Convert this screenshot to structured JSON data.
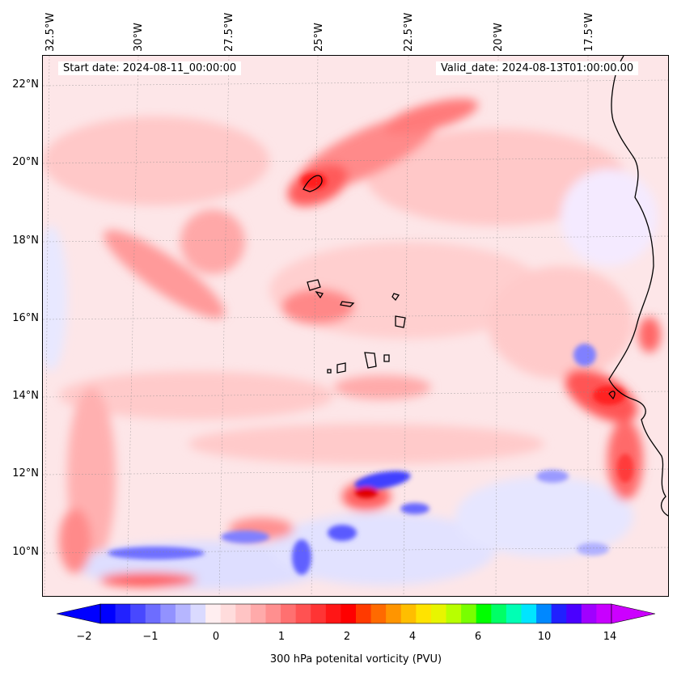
{
  "header": {
    "start_date": "Start date: 2024-08-11_00:00:00",
    "valid_date": "Valid_date: 2024-08-13T01:00:00.00"
  },
  "axes": {
    "lon_labels": [
      "32.5°W",
      "30°W",
      "27.5°W",
      "25°W",
      "22.5°W",
      "20°W",
      "17.5°W"
    ],
    "lat_labels": [
      "22°N",
      "20°N",
      "18°N",
      "16°N",
      "14°N",
      "12°N",
      "10°N"
    ]
  },
  "colorbar": {
    "label": "300 hPa potenital vorticity (PVU)",
    "ticks": [
      "−2",
      "−1",
      "0",
      "1",
      "2",
      "4",
      "6",
      "10",
      "14"
    ],
    "colors": [
      "#0000ff",
      "#2222ff",
      "#4848ff",
      "#6d6dff",
      "#9292ff",
      "#b6b6ff",
      "#dadaff",
      "#ffeef0",
      "#ffdcdc",
      "#ffc4c4",
      "#ffaaaa",
      "#ff8f8f",
      "#ff7070",
      "#ff5252",
      "#ff3434",
      "#ff1616",
      "#ff0000",
      "#ff3a00",
      "#ff6a00",
      "#ff9500",
      "#ffbe00",
      "#ffe300",
      "#e8f500",
      "#b8ff00",
      "#78ff00",
      "#00ff00",
      "#00ff66",
      "#00ffb4",
      "#00e5ff",
      "#0088ff",
      "#2020ff",
      "#4a00ff",
      "#a000ff",
      "#c800ff"
    ],
    "min_color": "#0000ff",
    "max_color": "#cc00ff"
  },
  "map_colors": {
    "background": "#fde3e5",
    "light_pink": "#ffcccc",
    "pink": "#ffaaaa",
    "red_mid": "#ff7777",
    "red": "#ff3b3b",
    "dark_red": "#e00000",
    "light_blue": "#e6e6ff",
    "blue": "#9a9aff",
    "dark_blue": "#5050ff",
    "coast": "#000000"
  }
}
